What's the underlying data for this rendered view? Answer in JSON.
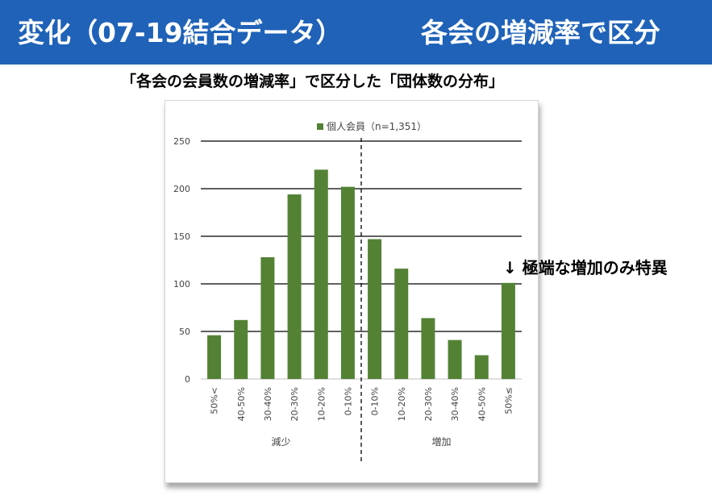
{
  "header": {
    "title": "変化（07-19結合データ）",
    "right": "各会の増減率で区分"
  },
  "subtitle": "「各会の会員数の増減率」で区分した「団体数の分布」",
  "annotation": "↓ 極端な増加のみ特異",
  "colors": {
    "header": "#1f62b8",
    "bar": "#548235"
  },
  "chart_data": {
    "type": "bar",
    "categories": [
      "50%<",
      "40-50%",
      "30-40%",
      "20-30%",
      "10-20%",
      "0-10%",
      "0-10%",
      "10-20%",
      "20-30%",
      "30-40%",
      "40-50%",
      "50%≤"
    ],
    "series": [
      {
        "name": "個人会員（n=1,351）",
        "values": [
          46,
          62,
          128,
          194,
          220,
          202,
          147,
          116,
          64,
          41,
          25,
          101
        ]
      }
    ],
    "groups": [
      {
        "label": "減少",
        "categories": 6
      },
      {
        "label": "増加",
        "categories": 6
      }
    ],
    "ylim": [
      0,
      250
    ],
    "yticks": [
      0,
      50,
      100,
      150,
      200,
      250
    ],
    "grid": true,
    "legend": "top-center",
    "divider": "dashed line between 減少 and 増加"
  }
}
